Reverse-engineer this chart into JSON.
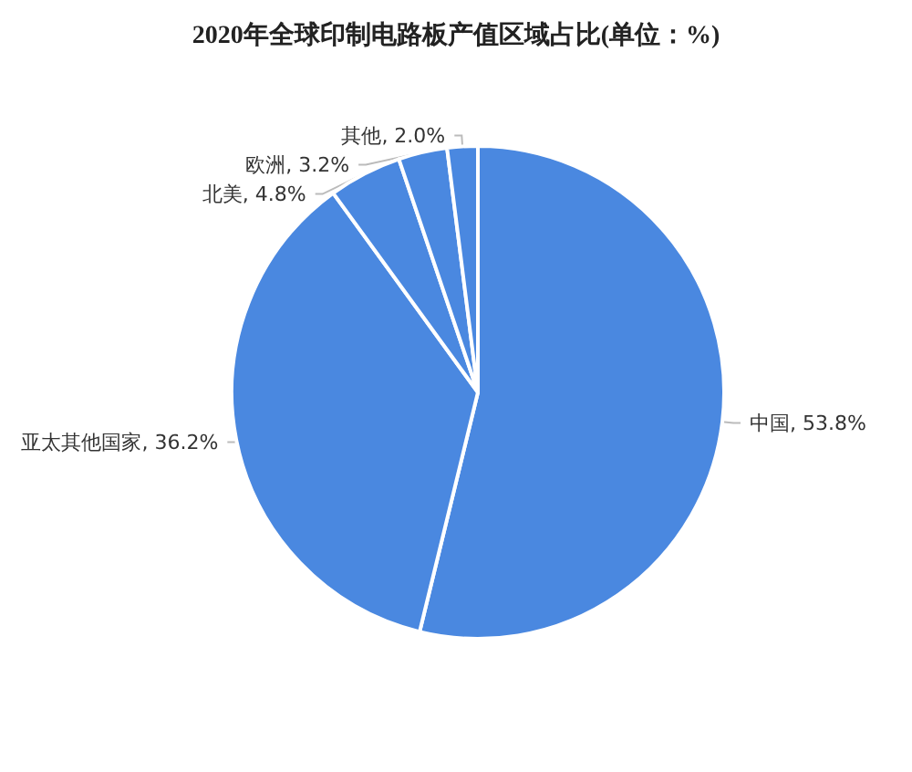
{
  "chart_data": {
    "type": "pie",
    "title": "2020年全球印制电路板产值区域占比(单位：%)",
    "categories": [
      "中国",
      "亚太其他国家",
      "北美",
      "欧洲",
      "其他"
    ],
    "values": [
      53.8,
      36.2,
      4.8,
      3.2,
      2.0
    ],
    "colors": [
      "#4a88e0",
      "#4a88e0",
      "#4a88e0",
      "#4a88e0",
      "#4a88e0"
    ],
    "value_labels": [
      "53.8%",
      "36.2%",
      "4.8%",
      "3.2%",
      "2.0%"
    ],
    "legend": false
  }
}
